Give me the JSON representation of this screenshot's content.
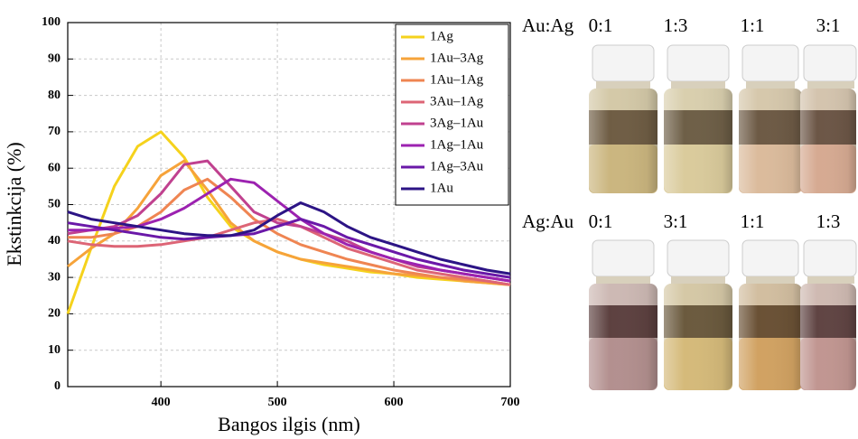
{
  "chart_data": {
    "type": "line",
    "x_label": "Bangos ilgis (nm)",
    "y_label": "Ekstinkcija (%)",
    "x": [
      320,
      340,
      360,
      380,
      400,
      420,
      440,
      460,
      480,
      500,
      520,
      540,
      560,
      580,
      600,
      620,
      640,
      660,
      680,
      700
    ],
    "series": [
      {
        "name": "1Ag",
        "color": "#f5d21c",
        "values": [
          20,
          38,
          55,
          66,
          70,
          63,
          52,
          44,
          40,
          37,
          35,
          33.5,
          32.5,
          31.5,
          31,
          30,
          29.5,
          29,
          28.5,
          28
        ]
      },
      {
        "name": "1Au–3Ag",
        "color": "#f6a33a",
        "values": [
          33,
          38,
          42,
          49,
          58,
          62,
          54,
          45,
          40,
          37,
          35,
          34,
          33,
          32,
          31,
          30.5,
          30,
          29,
          28.5,
          28
        ]
      },
      {
        "name": "1Au–1Ag",
        "color": "#ef8552",
        "values": [
          41,
          41,
          42,
          44,
          48,
          54,
          57,
          52,
          46,
          42,
          39,
          37,
          35,
          33.5,
          32,
          31,
          30,
          29.5,
          29,
          28
        ]
      },
      {
        "name": "3Au–1Ag",
        "color": "#dd6576",
        "values": [
          40,
          39,
          38.5,
          38.5,
          39,
          40,
          41,
          43,
          45,
          46,
          44,
          41,
          38,
          36,
          34,
          32,
          31,
          30,
          29,
          28
        ]
      },
      {
        "name": "3Ag–1Au",
        "color": "#c0418f",
        "values": [
          42,
          43,
          44,
          47,
          53,
          61,
          62,
          55,
          48,
          45,
          44,
          42,
          40,
          37,
          35,
          33,
          32,
          31,
          30,
          29
        ]
      },
      {
        "name": "1Ag–1Au",
        "color": "#9c22b0",
        "values": [
          43,
          43,
          43.5,
          44,
          46,
          49,
          53,
          57,
          56,
          51,
          46,
          42,
          39,
          37,
          35,
          33.5,
          32,
          31,
          30,
          29
        ]
      },
      {
        "name": "1Ag–3Au",
        "color": "#6a18a8",
        "values": [
          45,
          44,
          43,
          42,
          41,
          40.5,
          41,
          41.5,
          42,
          44,
          46,
          44,
          41,
          39,
          37,
          35,
          33.5,
          32,
          31,
          30
        ]
      },
      {
        "name": "1Au",
        "color": "#2c1485",
        "values": [
          48,
          46,
          45,
          44,
          43,
          42,
          41.5,
          41.5,
          43,
          47,
          50.5,
          48,
          44,
          41,
          39,
          37,
          35,
          33.5,
          32,
          31
        ]
      }
    ],
    "xlim": [
      320,
      700
    ],
    "xticks": [
      400,
      500,
      600,
      700
    ],
    "ylim": [
      0,
      100
    ],
    "yticks": [
      0,
      10,
      20,
      30,
      40,
      50,
      60,
      70,
      80,
      90,
      100
    ],
    "grid": true,
    "legend": "upper right"
  },
  "photo_panel": {
    "rows": [
      {
        "label": "Au:Ag",
        "ratios": [
          "0:1",
          "1:3",
          "1:1",
          "3:1"
        ]
      },
      {
        "label": "Ag:Au",
        "ratios": [
          "0:1",
          "3:1",
          "1:1",
          "1:3"
        ]
      }
    ]
  }
}
